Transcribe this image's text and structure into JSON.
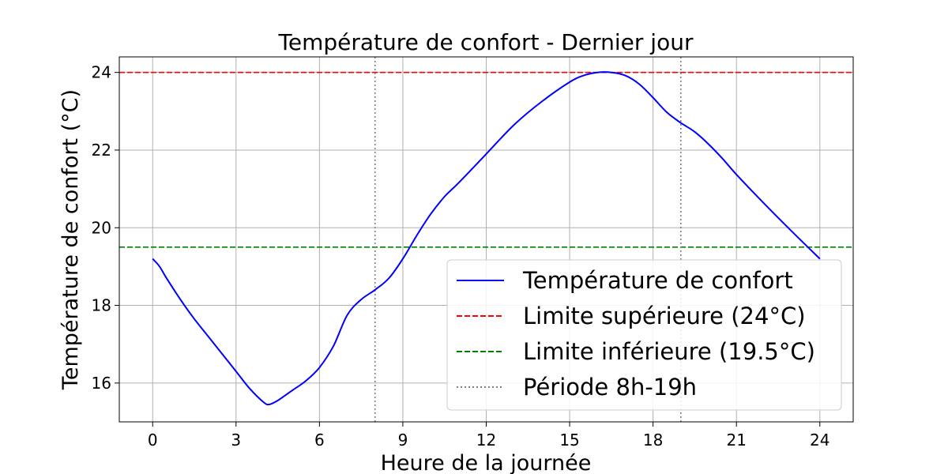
{
  "chart_data": {
    "type": "line",
    "title": "Température de confort - Dernier jour",
    "xlabel": "Heure de la journée",
    "ylabel": "Température de confort (°C)",
    "xlim": [
      -1.2,
      25.2
    ],
    "ylim": [
      15.0,
      24.4
    ],
    "xticks": [
      0,
      3,
      6,
      9,
      12,
      15,
      18,
      21,
      24
    ],
    "yticks": [
      16,
      18,
      20,
      22,
      24
    ],
    "grid": true,
    "legend_position": "lower-right",
    "series": [
      {
        "name": "Température de confort",
        "color": "#0000ff",
        "style": "solid",
        "x": [
          0,
          0.25,
          0.5,
          1,
          1.5,
          2,
          2.5,
          3,
          3.5,
          4,
          4.2,
          4.5,
          5,
          5.5,
          6,
          6.5,
          7,
          7.5,
          8,
          8.5,
          9,
          9.5,
          10,
          10.5,
          11,
          12,
          13,
          14,
          15,
          15.5,
          16,
          16.5,
          17,
          17.5,
          18,
          18.5,
          19,
          19.5,
          20,
          20.5,
          21,
          22,
          23,
          24
        ],
        "y": [
          19.2,
          19.0,
          18.7,
          18.15,
          17.65,
          17.2,
          16.75,
          16.3,
          15.85,
          15.5,
          15.45,
          15.55,
          15.8,
          16.05,
          16.4,
          16.95,
          17.75,
          18.15,
          18.4,
          18.7,
          19.2,
          19.8,
          20.35,
          20.8,
          21.15,
          21.9,
          22.65,
          23.25,
          23.75,
          23.92,
          24.0,
          24.0,
          23.92,
          23.7,
          23.35,
          22.97,
          22.7,
          22.47,
          22.15,
          21.78,
          21.37,
          20.62,
          19.9,
          19.2
        ]
      },
      {
        "name": "Limite supérieure (24°C)",
        "color": "#ff0000",
        "style": "dashed",
        "y_constant": 24
      },
      {
        "name": "Limite inférieure (19.5°C)",
        "color": "#008000",
        "style": "dashed",
        "y_constant": 19.5
      },
      {
        "name": "Période 8h-19h",
        "color": "#808080",
        "style": "dotted",
        "x_constant": [
          8,
          19
        ]
      }
    ]
  }
}
